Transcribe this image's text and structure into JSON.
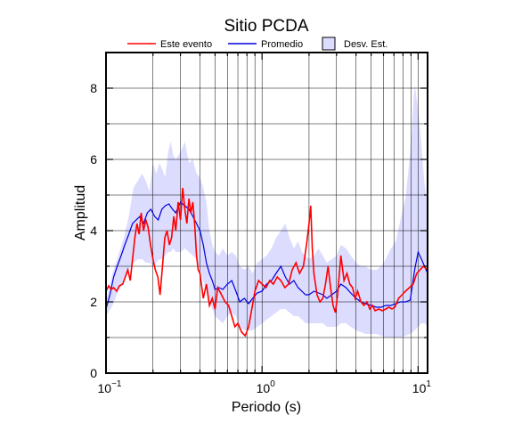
{
  "chart_data": {
    "type": "line",
    "title": "Sitio PCDA",
    "xlabel": "Periodo (s)",
    "ylabel": "Amplitud",
    "x_scale": "log",
    "xlim": [
      0.1,
      11.5
    ],
    "ylim": [
      0,
      9
    ],
    "grid": true,
    "legend_position": "top",
    "x_tick_labels": [
      {
        "value": 0.1,
        "base": "10",
        "exp": "−1"
      },
      {
        "value": 1,
        "base": "10",
        "exp": "0"
      },
      {
        "value": 10,
        "base": "10",
        "exp": "1"
      }
    ],
    "y_ticks": [
      0,
      2,
      4,
      6,
      8
    ],
    "legend": {
      "event": "Este evento",
      "mean": "Promedio",
      "std": "Desv. Est."
    },
    "colors": {
      "event": "#ff0000",
      "mean": "#0000dd",
      "std_fill": "#dcdcff",
      "grid": "#000000"
    },
    "series": [
      {
        "name": "Este evento",
        "x": [
          0.1,
          0.104,
          0.108,
          0.112,
          0.117,
          0.122,
          0.128,
          0.133,
          0.138,
          0.143,
          0.148,
          0.153,
          0.158,
          0.163,
          0.168,
          0.174,
          0.18,
          0.186,
          0.193,
          0.2,
          0.207,
          0.215,
          0.222,
          0.23,
          0.238,
          0.246,
          0.255,
          0.263,
          0.272,
          0.28,
          0.29,
          0.3,
          0.31,
          0.32,
          0.33,
          0.34,
          0.35,
          0.36,
          0.37,
          0.38,
          0.39,
          0.4,
          0.42,
          0.44,
          0.46,
          0.48,
          0.5,
          0.52,
          0.55,
          0.58,
          0.61,
          0.64,
          0.67,
          0.7,
          0.74,
          0.78,
          0.82,
          0.86,
          0.9,
          0.95,
          1.0,
          1.06,
          1.12,
          1.18,
          1.25,
          1.32,
          1.4,
          1.48,
          1.56,
          1.65,
          1.74,
          1.84,
          1.94,
          2.0,
          2.05,
          2.1,
          2.15,
          2.25,
          2.35,
          2.45,
          2.55,
          2.65,
          2.75,
          2.85,
          2.95,
          3.05,
          3.2,
          3.35,
          3.5,
          3.65,
          3.8,
          3.95,
          4.1,
          4.3,
          4.5,
          4.7,
          4.9,
          5.1,
          5.3,
          5.6,
          5.9,
          6.2,
          6.5,
          6.8,
          7.1,
          7.5,
          7.9,
          8.3,
          8.8,
          9.3,
          9.8,
          10.3,
          10.8,
          11.5
        ],
        "values": [
          2.3,
          2.45,
          2.35,
          2.4,
          2.3,
          2.45,
          2.5,
          2.7,
          2.9,
          2.6,
          3.2,
          3.8,
          4.2,
          3.9,
          4.5,
          4.0,
          4.3,
          4.1,
          3.6,
          3.2,
          2.9,
          2.7,
          2.2,
          3.0,
          3.8,
          4.0,
          3.6,
          3.8,
          4.4,
          4.0,
          4.8,
          4.3,
          5.2,
          4.6,
          4.2,
          4.9,
          4.5,
          4.8,
          4.2,
          3.3,
          2.9,
          2.8,
          2.1,
          2.5,
          1.9,
          2.1,
          1.8,
          2.4,
          2.2,
          2.0,
          1.9,
          1.6,
          1.3,
          1.4,
          1.15,
          1.05,
          1.3,
          1.8,
          2.3,
          2.6,
          2.5,
          2.4,
          2.6,
          2.5,
          2.7,
          2.6,
          2.4,
          2.5,
          2.9,
          3.1,
          2.8,
          3.0,
          3.7,
          4.2,
          4.7,
          3.5,
          2.8,
          2.2,
          2.0,
          2.1,
          2.5,
          3.0,
          2.4,
          1.9,
          1.7,
          2.2,
          3.3,
          2.6,
          2.8,
          2.5,
          2.4,
          2.1,
          2.3,
          2.0,
          1.9,
          2.0,
          1.8,
          1.9,
          1.75,
          1.8,
          1.75,
          1.8,
          1.85,
          1.8,
          1.85,
          2.1,
          2.2,
          2.3,
          2.4,
          2.5,
          2.8,
          2.9,
          3.0,
          2.9
        ]
      },
      {
        "name": "Promedio",
        "x": [
          0.1,
          0.106,
          0.112,
          0.118,
          0.125,
          0.132,
          0.14,
          0.148,
          0.156,
          0.165,
          0.174,
          0.184,
          0.194,
          0.205,
          0.216,
          0.228,
          0.24,
          0.253,
          0.267,
          0.28,
          0.3,
          0.32,
          0.34,
          0.36,
          0.38,
          0.4,
          0.42,
          0.44,
          0.46,
          0.48,
          0.5,
          0.53,
          0.56,
          0.6,
          0.64,
          0.68,
          0.72,
          0.77,
          0.82,
          0.87,
          0.93,
          1.0,
          1.07,
          1.15,
          1.23,
          1.32,
          1.41,
          1.5,
          1.6,
          1.7,
          1.8,
          1.9,
          2.0,
          2.15,
          2.3,
          2.45,
          2.6,
          2.8,
          3.0,
          3.2,
          3.45,
          3.7,
          4.0,
          4.3,
          4.6,
          5.0,
          5.4,
          5.8,
          6.2,
          6.7,
          7.2,
          7.7,
          8.3,
          8.9,
          9.5,
          10.0,
          10.5,
          11.0,
          11.5
        ],
        "values": [
          1.8,
          2.2,
          2.7,
          3.0,
          3.3,
          3.6,
          3.9,
          4.2,
          4.3,
          4.4,
          4.2,
          4.5,
          4.6,
          4.4,
          4.3,
          4.6,
          4.7,
          4.75,
          4.6,
          4.5,
          4.8,
          4.7,
          4.6,
          4.4,
          4.2,
          4.0,
          3.6,
          3.1,
          2.8,
          2.6,
          2.35,
          2.4,
          2.35,
          2.5,
          2.6,
          2.3,
          2.0,
          2.1,
          1.95,
          2.1,
          2.25,
          2.3,
          2.5,
          2.6,
          2.8,
          3.0,
          2.7,
          2.5,
          2.6,
          2.4,
          2.3,
          2.2,
          2.2,
          2.3,
          2.25,
          2.2,
          2.1,
          2.2,
          2.3,
          2.5,
          2.4,
          2.25,
          2.1,
          2.0,
          1.95,
          1.9,
          1.85,
          1.85,
          1.9,
          1.9,
          1.95,
          2.0,
          2.0,
          2.05,
          2.9,
          3.4,
          3.2,
          3.0,
          2.8
        ]
      },
      {
        "name": "Desv. Est.",
        "x": [
          0.1,
          0.11,
          0.12,
          0.13,
          0.14,
          0.15,
          0.16,
          0.17,
          0.18,
          0.19,
          0.2,
          0.21,
          0.22,
          0.23,
          0.24,
          0.25,
          0.26,
          0.27,
          0.28,
          0.3,
          0.32,
          0.34,
          0.36,
          0.38,
          0.4,
          0.42,
          0.44,
          0.46,
          0.48,
          0.5,
          0.53,
          0.56,
          0.6,
          0.64,
          0.68,
          0.72,
          0.77,
          0.82,
          0.87,
          0.93,
          1.0,
          1.07,
          1.15,
          1.23,
          1.32,
          1.41,
          1.5,
          1.6,
          1.7,
          1.8,
          1.9,
          2.0,
          2.15,
          2.3,
          2.45,
          2.6,
          2.8,
          3.0,
          3.2,
          3.45,
          3.7,
          4.0,
          4.3,
          4.6,
          5.0,
          5.4,
          5.8,
          6.2,
          6.7,
          7.2,
          7.7,
          8.3,
          8.9,
          9.5,
          10.0,
          10.5,
          11.0,
          11.5
        ],
        "upper": [
          2.0,
          2.8,
          3.3,
          3.8,
          4.4,
          5.2,
          5.4,
          5.6,
          5.4,
          5.1,
          5.9,
          5.6,
          5.9,
          5.7,
          5.5,
          6.2,
          6.5,
          6.1,
          6.0,
          6.2,
          6.5,
          5.9,
          6.0,
          5.6,
          5.5,
          5.2,
          4.8,
          4.0,
          3.6,
          3.4,
          3.3,
          3.5,
          3.3,
          3.4,
          3.3,
          3.0,
          2.9,
          3.0,
          2.8,
          3.1,
          3.2,
          3.3,
          3.5,
          3.8,
          4.0,
          4.2,
          3.8,
          3.5,
          3.7,
          3.4,
          3.3,
          3.2,
          3.3,
          3.5,
          3.3,
          3.1,
          3.2,
          3.3,
          3.6,
          3.5,
          3.3,
          3.1,
          3.0,
          3.0,
          2.9,
          2.9,
          3.0,
          3.2,
          3.5,
          3.7,
          4.3,
          4.9,
          6.2,
          8.1,
          7.4,
          6.4,
          5.3,
          4.8
        ],
        "lower": [
          1.6,
          1.9,
          2.3,
          2.6,
          2.9,
          3.1,
          3.2,
          3.2,
          3.1,
          3.1,
          3.0,
          3.1,
          3.2,
          3.2,
          3.3,
          3.4,
          3.4,
          3.5,
          3.4,
          3.4,
          3.5,
          3.4,
          3.3,
          3.2,
          2.9,
          2.6,
          2.3,
          2.0,
          1.8,
          1.6,
          1.5,
          1.4,
          1.6,
          1.7,
          1.6,
          1.3,
          1.2,
          1.2,
          1.2,
          1.3,
          1.4,
          1.5,
          1.6,
          1.7,
          1.8,
          1.8,
          1.7,
          1.6,
          1.6,
          1.5,
          1.4,
          1.4,
          1.4,
          1.4,
          1.4,
          1.3,
          1.3,
          1.3,
          1.4,
          1.4,
          1.3,
          1.2,
          1.15,
          1.1,
          1.1,
          1.1,
          1.05,
          1.0,
          1.0,
          1.0,
          1.0,
          1.05,
          1.1,
          1.2,
          1.3,
          1.4,
          1.4,
          1.3
        ]
      }
    ]
  }
}
